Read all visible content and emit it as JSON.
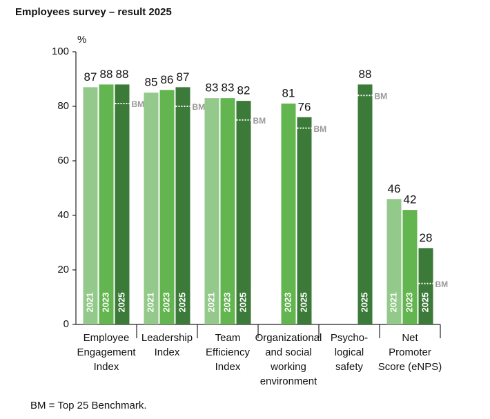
{
  "chart_data": {
    "type": "bar",
    "title": "Employees survey – result 2025",
    "y_unit": "%",
    "categories": [
      [
        "Employee",
        "Engagement",
        "Index"
      ],
      [
        "Leadership",
        "Index"
      ],
      [
        "Team",
        "Efficiency",
        "Index"
      ],
      [
        "Organizational",
        "and social",
        "working",
        "environment"
      ],
      [
        "Psycho-",
        "logical",
        "safety"
      ],
      [
        "Net",
        "Promoter",
        "Score (eNPS)"
      ]
    ],
    "series": [
      {
        "name": "2021",
        "color": "#93c98a",
        "values": [
          87,
          85,
          83,
          null,
          null,
          46
        ]
      },
      {
        "name": "2023",
        "color": "#63b54f",
        "values": [
          88,
          86,
          83,
          81,
          null,
          42
        ]
      },
      {
        "name": "2025",
        "color": "#3b7a38",
        "values": [
          88,
          87,
          82,
          76,
          88,
          28
        ]
      }
    ],
    "benchmark": {
      "name": "BM",
      "values": [
        81,
        80,
        75,
        72,
        84,
        15
      ]
    },
    "ylim": [
      0,
      100
    ],
    "yticks": [
      0,
      20,
      40,
      60,
      80,
      100
    ],
    "footnote": "BM = Top 25 Benchmark."
  }
}
